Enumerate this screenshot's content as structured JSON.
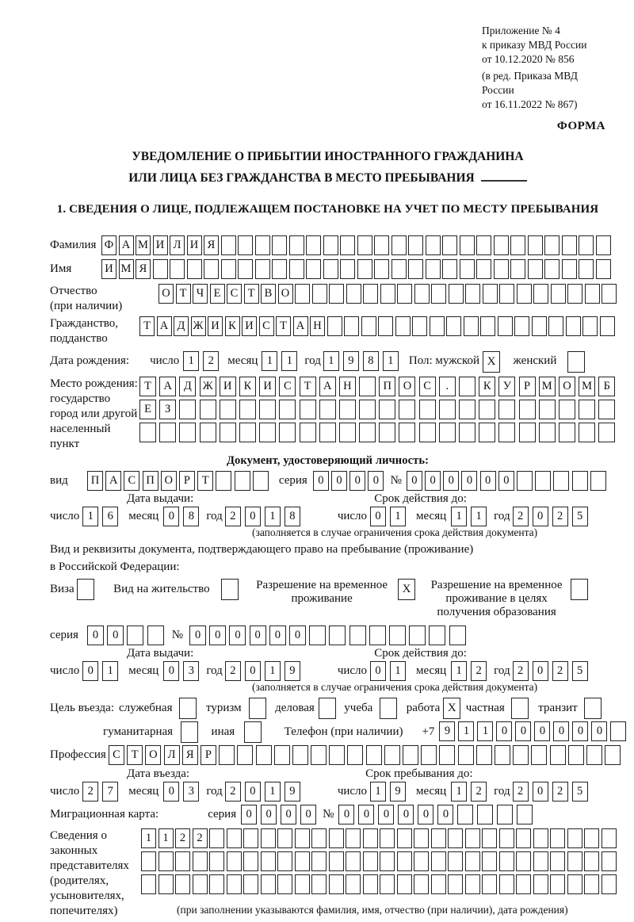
{
  "page": {
    "appendix": [
      "Приложение № 4",
      "к приказу МВД России",
      "от 10.12.2020 № 856"
    ],
    "amendment": [
      "(в ред. Приказа МВД России",
      "от 16.11.2022 № 867)"
    ],
    "form_word": "ФОРМА",
    "title1": "УВЕДОМЛЕНИЕ О ПРИБЫТИИ ИНОСТРАННОГО ГРАЖДАНИНА",
    "title2": "ИЛИ ЛИЦА БЕЗ ГРАЖДАНСТВА В МЕСТО ПРЕБЫВАНИЯ",
    "section1": "1. СВЕДЕНИЯ О ЛИЦЕ, ПОДЛЕЖАЩЕМ ПОСТАНОВКЕ НА УЧЕТ ПО МЕСТУ ПРЕБЫВАНИЯ"
  },
  "date_labels": {
    "day": "число",
    "month": "месяц",
    "year": "год"
  },
  "person": {
    "surname_label": "Фамилия",
    "surname": {
      "n": 30,
      "v": "ФАМИЛИЯ"
    },
    "name_label": "Имя",
    "name": {
      "n": 30,
      "v": "ИМЯ"
    },
    "patronymic_label": "Отчество",
    "patronymic_sublabel": "(при наличии)",
    "patronymic": {
      "n": 27,
      "v": "ОТЧЕСТВО"
    },
    "citizenship_label": "Гражданство,",
    "citizenship_sublabel": "подданство",
    "citizenship": {
      "n": 28,
      "v": "ТАДЖИКИСТАН"
    },
    "birth_date_label": "Дата рождения:",
    "birth_day": {
      "n": 2,
      "v": "12"
    },
    "birth_month": {
      "n": 2,
      "v": "11"
    },
    "birth_year": {
      "n": 4,
      "v": "1981"
    },
    "sex_label": "Пол: мужской",
    "sex_male": {
      "n": 1,
      "v": "X"
    },
    "sex_female_label": "женский",
    "sex_female": {
      "n": 1,
      "v": ""
    },
    "birth_place_label1": "Место рождения:",
    "birth_place_label2": "государство",
    "birth_place_label3": "город или другой",
    "birth_place_label4": "населенный пункт",
    "birth_place_row1": {
      "n": 24,
      "v": "ТАДЖИКИСТАН ПОС. КУРМОМБ"
    },
    "birth_place_row2": {
      "n": 24,
      "v": "ЕЗ"
    },
    "birth_place_row3": {
      "n": 24,
      "v": ""
    }
  },
  "identity_doc": {
    "heading": "Документ, удостоверяющий личность:",
    "kind_label": "вид",
    "kind": {
      "n": 10,
      "v": "ПАСПОРТ"
    },
    "series_label": "серия",
    "series": {
      "n": 4,
      "v": "0000"
    },
    "number_label": "№",
    "number": {
      "n": 11,
      "v": "000000"
    },
    "issue_heading": "Дата выдачи:",
    "issue_day": {
      "n": 2,
      "v": "16"
    },
    "issue_month": {
      "n": 2,
      "v": "08"
    },
    "issue_year": {
      "n": 4,
      "v": "2018"
    },
    "valid_heading": "Срок действия до:",
    "valid_day": {
      "n": 2,
      "v": "01"
    },
    "valid_month": {
      "n": 2,
      "v": "11"
    },
    "valid_year": {
      "n": 4,
      "v": "2025"
    },
    "note": "(заполняется в случае ограничения срока действия документа)"
  },
  "stay_doc": {
    "intro1": "Вид и реквизиты документа, подтверждающего право на пребывание (проживание)",
    "intro2": "в Российской Федерации:",
    "visa_label": "Виза",
    "visa": {
      "n": 1,
      "v": ""
    },
    "residence_label": "Вид на жительство",
    "residence": {
      "n": 1,
      "v": ""
    },
    "temp_label1": "Разрешение на временное",
    "temp_label2": "проживание",
    "temp": {
      "n": 1,
      "v": "X"
    },
    "edu_label1": "Разрешение на временное",
    "edu_label2": "проживание в целях",
    "edu_label3": "получения образования",
    "edu": {
      "n": 1,
      "v": ""
    },
    "series_label": "серия",
    "series": {
      "n": 4,
      "v": "00"
    },
    "number_label": "№",
    "number": {
      "n": 14,
      "v": "000000"
    },
    "issue_heading": "Дата выдачи:",
    "issue_day": {
      "n": 2,
      "v": "01"
    },
    "issue_month": {
      "n": 2,
      "v": "03"
    },
    "issue_year": {
      "n": 4,
      "v": "2019"
    },
    "valid_heading": "Срок действия до:",
    "valid_day": {
      "n": 2,
      "v": "01"
    },
    "valid_month": {
      "n": 2,
      "v": "12"
    },
    "valid_year": {
      "n": 4,
      "v": "2025"
    },
    "note": "(заполняется в случае ограничения срока действия документа)"
  },
  "visit": {
    "purpose_label": "Цель въезда:",
    "opt_business_label": "служебная",
    "opt_business": {
      "n": 1,
      "v": ""
    },
    "opt_tourism_label": "туризм",
    "opt_tourism": {
      "n": 1,
      "v": ""
    },
    "opt_commercial_label": "деловая",
    "opt_commercial": {
      "n": 1,
      "v": ""
    },
    "opt_study_label": "учеба",
    "opt_study": {
      "n": 1,
      "v": ""
    },
    "opt_work_label": "работа",
    "opt_work": {
      "n": 1,
      "v": "X"
    },
    "opt_private_label": "частная",
    "opt_private": {
      "n": 1,
      "v": ""
    },
    "opt_transit_label": "транзит",
    "opt_transit": {
      "n": 1,
      "v": ""
    },
    "opt_humanitarian_label": "гуманитарная",
    "opt_humanitarian": {
      "n": 1,
      "v": ""
    },
    "opt_other_label": "иная",
    "opt_other": {
      "n": 1,
      "v": ""
    },
    "phone_label": "Телефон (при наличии)",
    "phone_prefix": "+7",
    "phone": {
      "n": 10,
      "v": "911000000"
    },
    "profession_label": "Профессия",
    "profession": {
      "n": 28,
      "v": "СТОЛЯР"
    },
    "entry_heading": "Дата въезда:",
    "entry_day": {
      "n": 2,
      "v": "27"
    },
    "entry_month": {
      "n": 2,
      "v": "03"
    },
    "entry_year": {
      "n": 4,
      "v": "2019"
    },
    "stay_heading": "Срок пребывания до:",
    "stay_day": {
      "n": 2,
      "v": "19"
    },
    "stay_month": {
      "n": 2,
      "v": "12"
    },
    "stay_year": {
      "n": 4,
      "v": "2025"
    },
    "migration_card_label": "Миграционная карта:",
    "mc_series_label": "серия",
    "mc_series": {
      "n": 4,
      "v": "0000"
    },
    "mc_number_label": "№",
    "mc_number": {
      "n": 10,
      "v": "000000"
    }
  },
  "representatives": {
    "label1": "Сведения о",
    "label2": "законных",
    "label3": "представителях",
    "label4": "(родителях,",
    "label5": "усыновителях,",
    "label6": "попечителях)",
    "row1": {
      "n": 28,
      "v": "1122"
    },
    "row2": {
      "n": 28,
      "v": ""
    },
    "row3": {
      "n": 28,
      "v": ""
    },
    "note": "(при заполнении указываются фамилия, имя, отчество (при наличии), дата рождения)"
  }
}
